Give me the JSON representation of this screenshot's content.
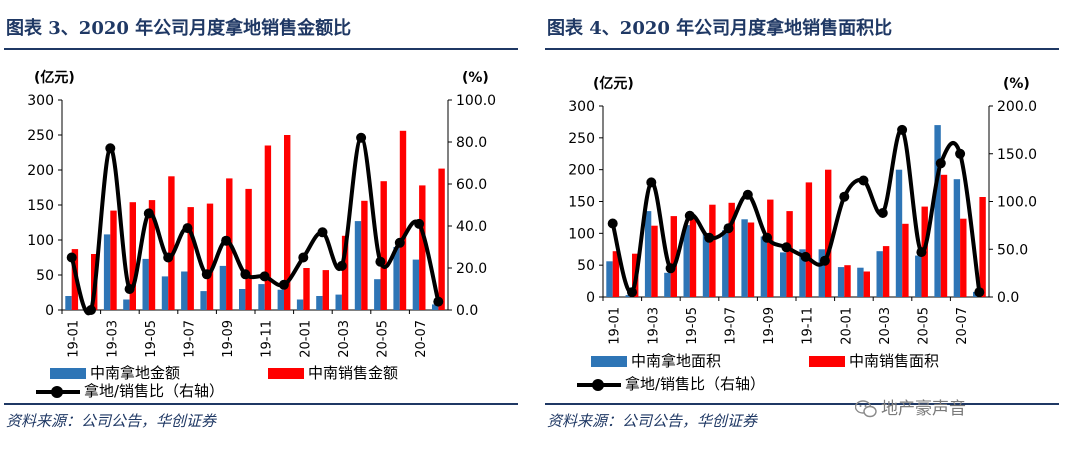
{
  "left_panel": {
    "title": "图表 3、2020 年公司月度拿地销售金额比",
    "source": "资料来源：公司公告，华创证券",
    "legend": [
      "中南拿地金额",
      "中南销售金额",
      "拿地/销售比（右轴）"
    ]
  },
  "right_panel": {
    "title": "图表 4、2020 年公司月度拿地销售面积比",
    "source": "资料来源：公司公告，华创证券",
    "legend": [
      "中南拿地面积",
      "中南销售面积",
      "拿地/销售比（右轴）"
    ],
    "watermark": "地产豪声音"
  },
  "colors": {
    "blue": "#2e75b6",
    "red": "#ff0000",
    "line": "#000000",
    "title": "#1f3864"
  },
  "chart_data": [
    {
      "type": "bar",
      "title": "图表 3、2020 年公司月度拿地销售金额比",
      "y_unit_left": "(亿元)",
      "y_unit_right": "(%)",
      "ylim": [
        0,
        300
      ],
      "y_ticks": [
        "0",
        "50",
        "100",
        "150",
        "200",
        "250",
        "300"
      ],
      "y2lim": [
        0,
        100
      ],
      "y2_ticks": [
        "0.0",
        "20.0",
        "40.0",
        "60.0",
        "80.0",
        "100.0"
      ],
      "categories": [
        "19-01",
        "19-02",
        "19-03",
        "19-04",
        "19-05",
        "19-06",
        "19-07",
        "19-08",
        "19-09",
        "19-10",
        "19-11",
        "19-12",
        "20-01",
        "20-02",
        "20-03",
        "20-04",
        "20-05",
        "20-06",
        "20-07",
        "20-08"
      ],
      "x_tick_labels": [
        "19-01",
        "19-03",
        "19-05",
        "19-07",
        "19-09",
        "19-11",
        "20-01",
        "20-03",
        "20-05",
        "20-07"
      ],
      "series": [
        {
          "name": "中南拿地金额",
          "kind": "bar",
          "color": "#2e75b6",
          "values": [
            20,
            3,
            108,
            15,
            73,
            48,
            55,
            27,
            63,
            30,
            37,
            29,
            15,
            20,
            22,
            127,
            44,
            90,
            72,
            8
          ]
        },
        {
          "name": "中南销售金额",
          "kind": "bar",
          "color": "#ff0000",
          "values": [
            87,
            80,
            142,
            154,
            157,
            191,
            147,
            152,
            188,
            173,
            235,
            250,
            60,
            57,
            106,
            156,
            184,
            256,
            178,
            202
          ]
        },
        {
          "name": "拿地/销售比（右轴）",
          "kind": "line",
          "axis": "right",
          "color": "#000000",
          "values": [
            25,
            0,
            77,
            10,
            46,
            25,
            39,
            17,
            33,
            17,
            16,
            12,
            25,
            37,
            21,
            82,
            23,
            32,
            41,
            4
          ]
        }
      ]
    },
    {
      "type": "bar",
      "title": "图表 4、2020 年公司月度拿地销售面积比",
      "y_unit_left": "(亿元)",
      "y_unit_right": "(%)",
      "ylim": [
        0,
        300
      ],
      "y_ticks": [
        "0",
        "50",
        "100",
        "150",
        "200",
        "250",
        "300"
      ],
      "y2lim": [
        0,
        200
      ],
      "y2_ticks": [
        "0.0",
        "50.0",
        "100.0",
        "150.0",
        "200.0"
      ],
      "categories": [
        "19-01",
        "19-02",
        "19-03",
        "19-04",
        "19-05",
        "19-06",
        "19-07",
        "19-08",
        "19-09",
        "19-10",
        "19-11",
        "19-12",
        "20-01",
        "20-02",
        "20-03",
        "20-04",
        "20-05",
        "20-06",
        "20-07",
        "20-08"
      ],
      "x_tick_labels": [
        "19-01",
        "19-03",
        "19-05",
        "19-07",
        "19-09",
        "19-11",
        "20-01",
        "20-03",
        "20-05",
        "20-07"
      ],
      "series": [
        {
          "name": "中南拿地面积",
          "kind": "bar",
          "color": "#2e75b6",
          "values": [
            56,
            3,
            135,
            38,
            113,
            100,
            105,
            122,
            95,
            70,
            75,
            75,
            47,
            46,
            72,
            200,
            65,
            270,
            185,
            8
          ]
        },
        {
          "name": "中南销售面积",
          "kind": "bar",
          "color": "#ff0000",
          "values": [
            72,
            68,
            112,
            127,
            127,
            145,
            148,
            117,
            153,
            135,
            180,
            200,
            50,
            40,
            80,
            115,
            142,
            192,
            123,
            157
          ]
        },
        {
          "name": "拿地/销售比（右轴）",
          "kind": "line",
          "axis": "right",
          "color": "#000000",
          "values": [
            77,
            5,
            120,
            30,
            85,
            62,
            72,
            107,
            62,
            52,
            42,
            38,
            105,
            122,
            88,
            175,
            47,
            140,
            150,
            5
          ]
        }
      ]
    }
  ]
}
